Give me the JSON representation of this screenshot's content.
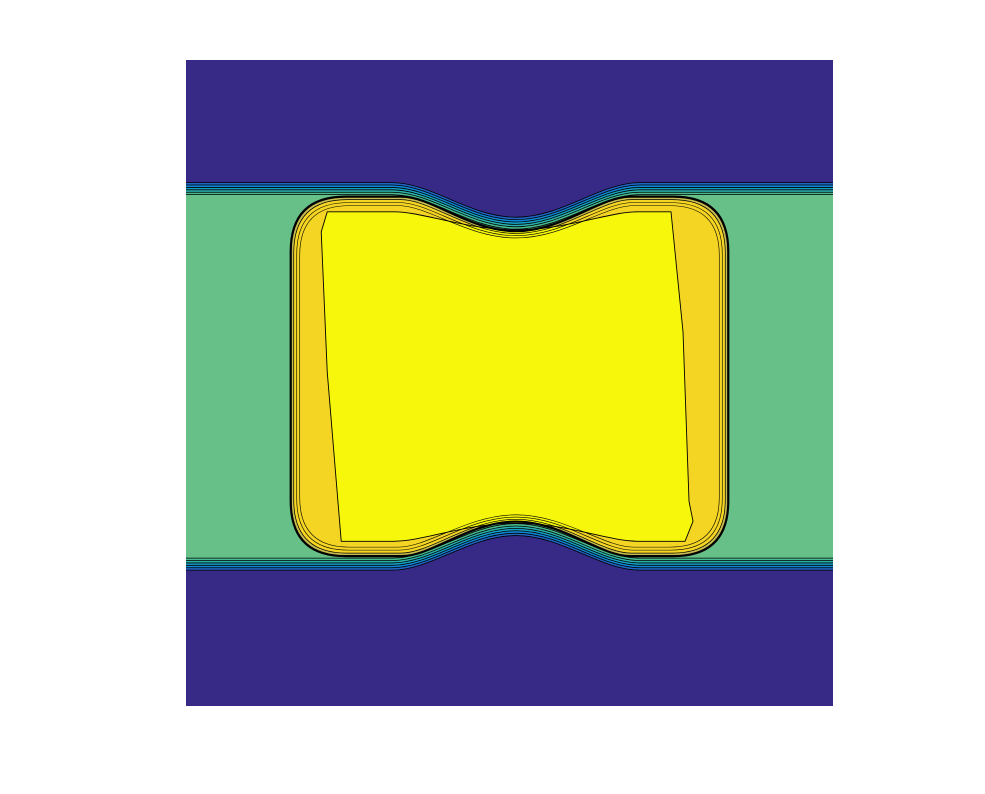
{
  "chart_data": {
    "type": "heatmap",
    "subtype": "filled-contour",
    "title": "",
    "xlabel": "",
    "ylabel": "",
    "axes_visible": false,
    "grid": false,
    "legend": "none",
    "colormap": "viridis",
    "xlim": [
      0,
      1
    ],
    "ylim": [
      0,
      1
    ],
    "block_x": [
      0.0815,
      0.9185
    ],
    "block_y": [
      0.2115,
      0.768
    ],
    "bottleneck_x": [
      0.38,
      0.64
    ],
    "bottleneck_depth": 0.0535,
    "levels": [
      {
        "name": "level-1",
        "value": 0.1,
        "color": "#352a87"
      },
      {
        "name": "level-2",
        "value": 0.2,
        "color": "#2064c4"
      },
      {
        "name": "level-3",
        "value": 0.3,
        "color": "#0f87d4"
      },
      {
        "name": "level-4",
        "value": 0.4,
        "color": "#14a0c4"
      },
      {
        "name": "level-5",
        "value": 0.5,
        "color": "#2ab1ab"
      },
      {
        "name": "level-6",
        "value": 0.6,
        "color": "#48bc8f"
      },
      {
        "name": "level-7",
        "value": 0.68,
        "color": "#66c088"
      },
      {
        "name": "level-8",
        "value": 0.8,
        "color": "#c7bd4f"
      },
      {
        "name": "level-9",
        "value": 0.88,
        "color": "#f5d523"
      },
      {
        "name": "level-10",
        "value": 0.96,
        "color": "#f6f70b"
      }
    ],
    "regions": {
      "background": {
        "value": 0.0,
        "color": "#362a86"
      },
      "side_field": {
        "value": 0.68,
        "color": "#66c088"
      },
      "block_edge": {
        "value": 0.88,
        "color": "#f5d523"
      },
      "core": {
        "value": 0.98,
        "color": "#f6f70b"
      }
    }
  }
}
